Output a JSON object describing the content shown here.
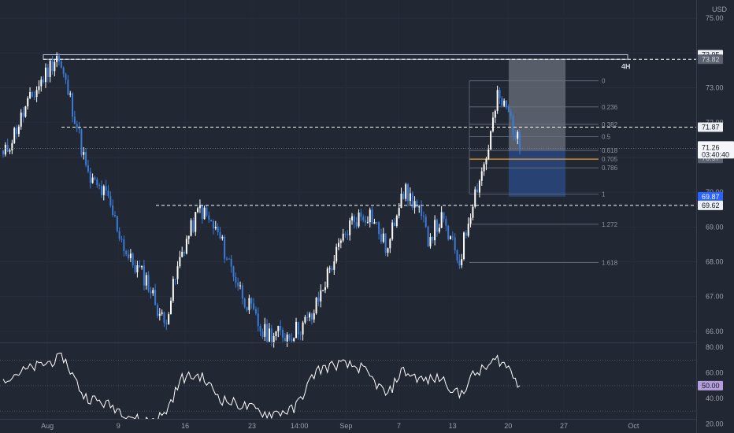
{
  "chart_data": [
    {
      "type": "candlestick",
      "currency": "USD",
      "price_axis": {
        "range": [
          65.75,
          75.5
        ],
        "ticks": [
          "75.00",
          "74.00",
          "73.00",
          "72.00",
          "71.00",
          "70.00",
          "69.00",
          "68.00",
          "67.00",
          "66.00"
        ]
      },
      "time_axis": {
        "ticks": [
          "Aug",
          "9",
          "16",
          "23",
          "14:00",
          "Sep",
          "7",
          "13",
          "20",
          "27",
          "Oct"
        ]
      },
      "candles": {
        "count": 232,
        "open": 71.2,
        "anchors": [
          {
            "i": 0,
            "close": 71.0
          },
          {
            "i": 10,
            "close": 72.4
          },
          {
            "i": 18,
            "close": 73.3
          },
          {
            "i": 24,
            "close": 73.95
          },
          {
            "i": 28,
            "close": 73.1
          },
          {
            "i": 32,
            "close": 72.2
          },
          {
            "i": 38,
            "close": 70.4
          },
          {
            "i": 46,
            "close": 69.9
          },
          {
            "i": 56,
            "close": 68.1
          },
          {
            "i": 64,
            "close": 67.5
          },
          {
            "i": 72,
            "close": 66.2
          },
          {
            "i": 80,
            "close": 68.3
          },
          {
            "i": 88,
            "close": 69.55
          },
          {
            "i": 96,
            "close": 68.8
          },
          {
            "i": 106,
            "close": 67.2
          },
          {
            "i": 116,
            "close": 65.95
          },
          {
            "i": 128,
            "close": 65.9
          },
          {
            "i": 138,
            "close": 66.4
          },
          {
            "i": 146,
            "close": 67.8
          },
          {
            "i": 156,
            "close": 69.2
          },
          {
            "i": 164,
            "close": 69.4
          },
          {
            "i": 172,
            "close": 68.3
          },
          {
            "i": 178,
            "close": 70.1
          },
          {
            "i": 184,
            "close": 69.7
          },
          {
            "i": 190,
            "close": 68.7
          },
          {
            "i": 196,
            "close": 69.2
          },
          {
            "i": 204,
            "close": 68.0
          },
          {
            "i": 210,
            "close": 69.8
          },
          {
            "i": 216,
            "close": 71.0
          },
          {
            "i": 221,
            "close": 72.7
          },
          {
            "i": 226,
            "close": 72.3
          },
          {
            "i": 231,
            "close": 71.26
          }
        ]
      },
      "last_price": "71.26",
      "countdown": "03:40:40",
      "price_tags": [
        {
          "label": "73.95",
          "value": 73.95,
          "style": "light"
        },
        {
          "label": "73.82",
          "value": 73.82,
          "style": "grey"
        },
        {
          "label": "71.87",
          "value": 71.87,
          "style": "light"
        },
        {
          "label": "70.97",
          "value": 70.97,
          "style": "grey"
        },
        {
          "label": "69.87",
          "value": 69.87,
          "style": "blue"
        },
        {
          "label": "69.62",
          "value": 69.62,
          "style": "light"
        }
      ],
      "horizontal_lines": [
        73.82,
        71.87,
        69.62
      ],
      "zone": {
        "label": "4H",
        "high": 73.95,
        "low": 73.82
      },
      "fibonacci": {
        "levels": [
          {
            "label": "0",
            "value": 73.2
          },
          {
            "label": "0.236",
            "value": 72.45
          },
          {
            "label": "0.382",
            "value": 71.95
          },
          {
            "label": "0.5",
            "value": 71.6
          },
          {
            "label": "0.618",
            "value": 71.2
          },
          {
            "label": "0.705",
            "value": 70.95,
            "highlight": true
          },
          {
            "label": "0.786",
            "value": 70.7
          },
          {
            "label": "1",
            "value": 69.95
          },
          {
            "label": "1.272",
            "value": 69.08
          },
          {
            "label": "1.618",
            "value": 67.98
          }
        ]
      },
      "position": {
        "stop": 73.82,
        "entry": 71.2,
        "target": 69.87
      },
      "colors": {
        "up": "#ffffff",
        "down": "#3a7bd5",
        "highlight": "#f0a030",
        "tag_blue": "#2962ff"
      }
    },
    {
      "type": "line",
      "indicator": "oscillator",
      "y_range": [
        16,
        82
      ],
      "ticks": [
        "80.00",
        "60.00",
        "40.00",
        "20.00"
      ],
      "levels": [
        70,
        50,
        30
      ],
      "current": "50.00",
      "anchors": [
        {
          "i": 0,
          "v": 56
        },
        {
          "i": 20,
          "v": 68
        },
        {
          "i": 27,
          "v": 72
        },
        {
          "i": 36,
          "v": 42
        },
        {
          "i": 50,
          "v": 33
        },
        {
          "i": 62,
          "v": 22
        },
        {
          "i": 72,
          "v": 27
        },
        {
          "i": 80,
          "v": 56
        },
        {
          "i": 88,
          "v": 58
        },
        {
          "i": 98,
          "v": 39
        },
        {
          "i": 108,
          "v": 34
        },
        {
          "i": 118,
          "v": 28
        },
        {
          "i": 130,
          "v": 31
        },
        {
          "i": 140,
          "v": 62
        },
        {
          "i": 150,
          "v": 67
        },
        {
          "i": 160,
          "v": 64
        },
        {
          "i": 172,
          "v": 42
        },
        {
          "i": 178,
          "v": 62
        },
        {
          "i": 188,
          "v": 54
        },
        {
          "i": 196,
          "v": 56
        },
        {
          "i": 204,
          "v": 42
        },
        {
          "i": 210,
          "v": 58
        },
        {
          "i": 216,
          "v": 64
        },
        {
          "i": 221,
          "v": 71
        },
        {
          "i": 226,
          "v": 64
        },
        {
          "i": 231,
          "v": 50
        }
      ]
    }
  ]
}
